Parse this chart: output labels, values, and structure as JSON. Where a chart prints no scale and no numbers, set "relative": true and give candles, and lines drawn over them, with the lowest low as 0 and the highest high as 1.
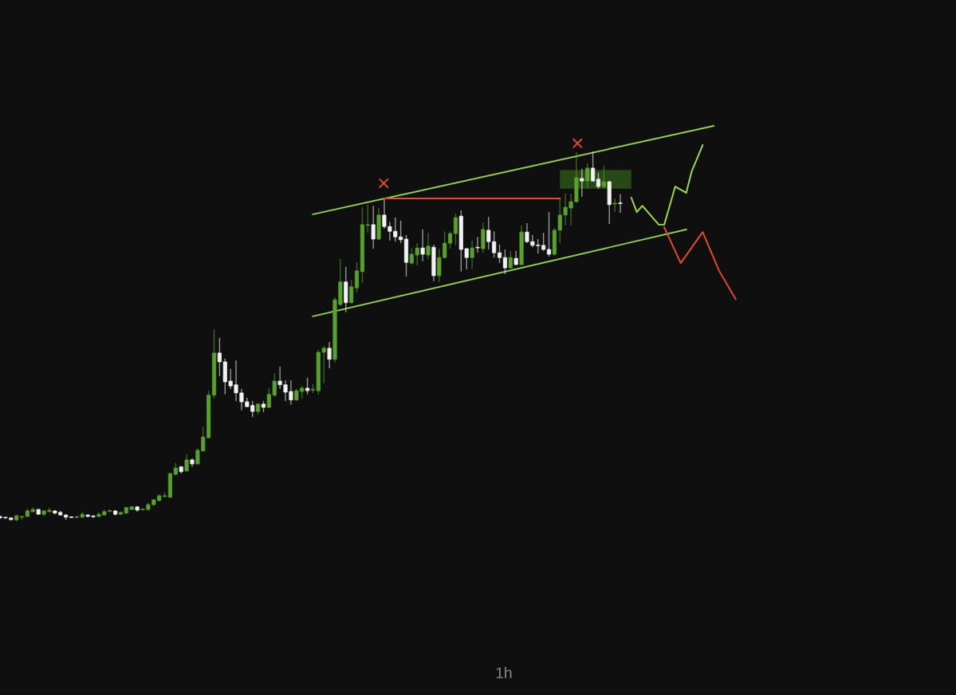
{
  "chart_data": {
    "type": "candlestick",
    "relative": true,
    "categories": [
      null,
      null,
      null,
      null,
      null,
      null,
      null,
      null,
      null,
      null,
      null,
      null,
      null,
      null,
      null,
      null,
      null,
      null,
      null,
      null,
      null,
      null,
      null,
      null,
      null,
      null,
      null,
      null,
      null,
      null,
      null,
      null,
      null,
      null,
      null,
      null,
      null,
      null,
      null,
      null,
      null,
      null,
      null,
      null,
      null,
      null,
      null,
      null,
      null,
      null,
      null,
      null,
      null,
      null,
      null,
      null,
      null,
      null,
      null,
      null,
      null,
      null,
      null,
      null,
      null,
      null,
      null,
      null,
      null,
      null,
      null,
      null,
      null,
      null,
      null,
      null,
      null,
      null,
      null,
      null,
      null,
      null,
      null,
      null,
      null,
      null,
      null,
      null,
      null,
      null,
      null,
      null,
      null,
      null,
      null,
      null,
      null,
      null,
      null,
      null,
      null,
      null,
      null,
      null,
      null,
      null,
      null,
      null,
      null,
      null,
      null,
      null,
      null,
      null,
      null,
      null,
      null,
      null,
      null,
      null,
      null,
      null,
      null,
      null,
      null,
      null,
      null,
      null,
      null,
      null,
      null,
      null,
      null,
      null,
      null
    ],
    "colors": [
      "#f2f2f2",
      "#f2f2f2",
      "#f2f2f2",
      "#58a22c",
      "#58a22c",
      "#58a22c",
      "#58a22c",
      "#f2f2f2",
      "#58a22c",
      "#58a22c",
      "#f2f2f2",
      "#f2f2f2",
      "#f2f2f2",
      "#f2f2f2",
      "#58a22c",
      "#58a22c",
      "#f2f2f2",
      "#f2f2f2",
      "#58a22c",
      "#58a22c",
      "#58a22c",
      "#f2f2f2",
      "#58a22c",
      "#58a22c",
      "#58a22c",
      "#f2f2f2",
      "#58a22c",
      "#58a22c",
      "#58a22c",
      "#58a22c",
      "#58a22c",
      "#58a22c",
      "#58a22c",
      "#f2f2f2",
      "#58a22c",
      "#f2f2f2",
      "#58a22c",
      "#58a22c",
      "#58a22c",
      "#58a22c",
      "#f2f2f2",
      "#f2f2f2",
      "#f2f2f2",
      "#f2f2f2",
      "#f2f2f2",
      "#f2f2f2",
      "#f2f2f2",
      "#58a22c",
      "#f2f2f2",
      "#58a22c",
      "#58a22c",
      "#f2f2f2",
      "#f2f2f2",
      "#f2f2f2",
      "#58a22c",
      "#58a22c",
      "#f2f2f2",
      "#58a22c",
      "#58a22c",
      "#58a22c",
      "#f2f2f2",
      "#58a22c",
      "#58a22c",
      "#f2f2f2",
      "#58a22c",
      "#58a22c",
      "#58a22c",
      "#58a22c",
      "#f2f2f2",
      "#58a22c",
      "#f2f2f2",
      "#f2f2f2",
      "#f2f2f2",
      "#f2f2f2",
      "#f2f2f2",
      "#58a22c",
      "#58a22c",
      "#f2f2f2",
      "#58a22c",
      "#f2f2f2",
      "#58a22c",
      "#58a22c",
      "#58a22c",
      "#58a22c",
      "#f2f2f2",
      "#f2f2f2",
      "#58a22c",
      "#f2f2f2",
      "#58a22c",
      "#f2f2f2",
      "#f2f2f2",
      "#f2f2f2",
      "#f2f2f2",
      "#58a22c",
      "#f2f2f2",
      "#58a22c",
      "#f2f2f2",
      "#f2f2f2",
      "#f2f2f2",
      "#f2f2f2",
      "#f2f2f2",
      "#58a22c",
      "#58a22c",
      "#58a22c",
      "#58a22c",
      "#58a22c",
      "#f2f2f2",
      "#58a22c",
      "#f2f2f2",
      "#f2f2f2",
      "#58a22c",
      "#f2f2f2",
      "#58a22c",
      "#f2f2f2",
      null,
      null,
      null,
      null,
      null,
      null,
      null,
      null,
      null,
      null,
      null,
      null,
      null,
      null,
      null,
      null,
      null,
      null,
      null,
      null,
      null
    ],
    "ohlc": [
      [
        0.013,
        0.015,
        0.006,
        0.009
      ],
      [
        0.01,
        0.011,
        0.006,
        0.009
      ],
      [
        0.009,
        0.011,
        0.004,
        0.004
      ],
      [
        0.004,
        0.017,
        0,
        0.015
      ],
      [
        0.011,
        0.015,
        0.004,
        0.013
      ],
      [
        0.013,
        0.034,
        0.011,
        0.028
      ],
      [
        0.026,
        0.037,
        0.024,
        0.032
      ],
      [
        0.032,
        0.034,
        0.017,
        0.019
      ],
      [
        0.019,
        0.03,
        0.013,
        0.028
      ],
      [
        0.026,
        0.037,
        0.024,
        0.03
      ],
      [
        0.028,
        0.03,
        0.019,
        0.022
      ],
      [
        0.024,
        0.028,
        0.015,
        0.017
      ],
      [
        0.017,
        0.019,
        0.004,
        0.011
      ],
      [
        0.011,
        0.013,
        0.009,
        0.01
      ],
      [
        0.01,
        0.015,
        0.009,
        0.011
      ],
      [
        0.011,
        0.026,
        0.009,
        0.019
      ],
      [
        0.017,
        0.019,
        0.011,
        0.013
      ],
      [
        0.013,
        0.017,
        0.009,
        0.012
      ],
      [
        0.013,
        0.024,
        0.011,
        0.019
      ],
      [
        0.017,
        0.032,
        0.015,
        0.026
      ],
      [
        0.027,
        0.032,
        0.024,
        0.028
      ],
      [
        0.028,
        0.03,
        0.015,
        0.019
      ],
      [
        0.019,
        0.026,
        0.017,
        0.024
      ],
      [
        0.022,
        0.039,
        0.019,
        0.037
      ],
      [
        0.032,
        0.041,
        0.03,
        0.039
      ],
      [
        0.039,
        0.041,
        0.026,
        0.03
      ],
      [
        0.031,
        0.034,
        0.03,
        0.032
      ],
      [
        0.032,
        0.05,
        0.028,
        0.045
      ],
      [
        0.045,
        0.06,
        0.041,
        0.058
      ],
      [
        0.056,
        0.073,
        0.054,
        0.069
      ],
      [
        0.067,
        0.078,
        0.065,
        0.068
      ],
      [
        0.065,
        0.131,
        0.063,
        0.129
      ],
      [
        0.127,
        0.157,
        0.123,
        0.144
      ],
      [
        0.147,
        0.149,
        0.129,
        0.134
      ],
      [
        0.136,
        0.181,
        0.134,
        0.166
      ],
      [
        0.166,
        0.17,
        0.147,
        0.155
      ],
      [
        0.155,
        0.196,
        0.153,
        0.192
      ],
      [
        0.19,
        0.256,
        0.188,
        0.228
      ],
      [
        0.226,
        0.353,
        0.224,
        0.341
      ],
      [
        0.341,
        0.519,
        0.332,
        0.455
      ],
      [
        0.455,
        0.496,
        0.392,
        0.431
      ],
      [
        0.431,
        0.44,
        0.343,
        0.377
      ],
      [
        0.379,
        0.412,
        0.358,
        0.366
      ],
      [
        0.369,
        0.435,
        0.325,
        0.347
      ],
      [
        0.347,
        0.358,
        0.3,
        0.323
      ],
      [
        0.323,
        0.334,
        0.308,
        0.31
      ],
      [
        0.313,
        0.325,
        0.282,
        0.297
      ],
      [
        0.297,
        0.319,
        0.289,
        0.317
      ],
      [
        0.317,
        0.325,
        0.295,
        0.308
      ],
      [
        0.308,
        0.36,
        0.306,
        0.343
      ],
      [
        0.341,
        0.399,
        0.336,
        0.379
      ],
      [
        0.379,
        0.418,
        0.358,
        0.369
      ],
      [
        0.369,
        0.381,
        0.325,
        0.349
      ],
      [
        0.351,
        0.381,
        0.315,
        0.328
      ],
      [
        0.328,
        0.358,
        0.325,
        0.353
      ],
      [
        0.351,
        0.366,
        0.332,
        0.36
      ],
      [
        0.36,
        0.388,
        0.343,
        0.353
      ],
      [
        0.355,
        0.371,
        0.347,
        0.356
      ],
      [
        0.353,
        0.463,
        0.343,
        0.457
      ],
      [
        0.457,
        0.474,
        0.373,
        0.468
      ],
      [
        0.468,
        0.485,
        0.414,
        0.438
      ],
      [
        0.438,
        0.606,
        0.429,
        0.599
      ],
      [
        0.586,
        0.709,
        0.582,
        0.647
      ],
      [
        0.647,
        0.688,
        0.565,
        0.591
      ],
      [
        0.591,
        0.653,
        0.588,
        0.634
      ],
      [
        0.631,
        0.7,
        0.619,
        0.677
      ],
      [
        0.675,
        0.849,
        0.644,
        0.802
      ],
      [
        0.8,
        0.856,
        0.78,
        0.802
      ],
      [
        0.802,
        0.853,
        0.737,
        0.763
      ],
      [
        0.763,
        0.847,
        0.761,
        0.828
      ],
      [
        0.828,
        0.871,
        0.791,
        0.797
      ],
      [
        0.797,
        0.81,
        0.759,
        0.784
      ],
      [
        0.784,
        0.821,
        0.756,
        0.769
      ],
      [
        0.769,
        0.813,
        0.752,
        0.761
      ],
      [
        0.763,
        0.774,
        0.662,
        0.7
      ],
      [
        0.698,
        0.739,
        0.694,
        0.722
      ],
      [
        0.72,
        0.752,
        0.692,
        0.739
      ],
      [
        0.739,
        0.789,
        0.703,
        0.722
      ],
      [
        0.72,
        0.78,
        0.709,
        0.744
      ],
      [
        0.741,
        0.748,
        0.649,
        0.664
      ],
      [
        0.664,
        0.737,
        0.647,
        0.713
      ],
      [
        0.713,
        0.784,
        0.711,
        0.752
      ],
      [
        0.752,
        0.784,
        0.737,
        0.778
      ],
      [
        0.778,
        0.832,
        0.746,
        0.821
      ],
      [
        0.825,
        0.841,
        0.675,
        0.735
      ],
      [
        0.737,
        0.739,
        0.681,
        0.713
      ],
      [
        0.713,
        0.759,
        0.683,
        0.739
      ],
      [
        0.74,
        0.769,
        0.726,
        0.739
      ],
      [
        0.737,
        0.808,
        0.726,
        0.789
      ],
      [
        0.787,
        0.823,
        0.735,
        0.756
      ],
      [
        0.756,
        0.784,
        0.713,
        0.726
      ],
      [
        0.726,
        0.748,
        0.698,
        0.713
      ],
      [
        0.713,
        0.735,
        0.668,
        0.685
      ],
      [
        0.685,
        0.731,
        0.683,
        0.713
      ],
      [
        0.711,
        0.731,
        0.692,
        0.694
      ],
      [
        0.694,
        0.8,
        0.692,
        0.782
      ],
      [
        0.782,
        0.806,
        0.752,
        0.756
      ],
      [
        0.756,
        0.774,
        0.741,
        0.746
      ],
      [
        0.746,
        0.763,
        0.724,
        0.745
      ],
      [
        0.746,
        0.78,
        0.731,
        0.735
      ],
      [
        0.735,
        0.836,
        0.716,
        0.722
      ],
      [
        0.722,
        0.793,
        0.718,
        0.787
      ],
      [
        0.787,
        0.871,
        0.752,
        0.828
      ],
      [
        0.828,
        0.886,
        0.8,
        0.849
      ],
      [
        0.847,
        0.886,
        0.8,
        0.864
      ],
      [
        0.864,
        0.998,
        0.862,
        0.929
      ],
      [
        0.927,
        0.953,
        0.877,
        0.92
      ],
      [
        0.92,
        0.968,
        0.899,
        0.955
      ],
      [
        0.955,
        1,
        0.918,
        0.92
      ],
      [
        0.925,
        0.942,
        0.899,
        0.905
      ],
      [
        0.905,
        0.961,
        0.899,
        0.918
      ],
      [
        0.918,
        0.92,
        0.804,
        0.856
      ],
      [
        0.858,
        0.873,
        0.836,
        0.86
      ],
      [
        0.86,
        0.884,
        0.834,
        0.859
      ],
      null,
      null,
      null,
      null,
      null,
      null,
      null,
      null,
      null,
      null,
      null,
      null,
      null,
      null,
      null,
      null,
      null,
      null,
      null,
      null,
      null
    ],
    "series": [
      {
        "type": "line",
        "color": "#8fd14f",
        "values": [
          null,
          null,
          null,
          null,
          null,
          null,
          null,
          null,
          null,
          null,
          null,
          null,
          null,
          null,
          null,
          null,
          null,
          null,
          null,
          null,
          null,
          null,
          null,
          null,
          null,
          null,
          null,
          null,
          null,
          null,
          null,
          null,
          null,
          null,
          null,
          null,
          null,
          null,
          null,
          null,
          null,
          null,
          null,
          null,
          null,
          null,
          null,
          null,
          null,
          null,
          null,
          null,
          null,
          null,
          null,
          null,
          null,
          0.83,
          null,
          null,
          null,
          null,
          null,
          null,
          null,
          null,
          null,
          null,
          null,
          null,
          null,
          null,
          null,
          null,
          null,
          null,
          null,
          null,
          null,
          null,
          null,
          null,
          null,
          null,
          null,
          null,
          null,
          null,
          null,
          null,
          null,
          null,
          null,
          null,
          null,
          null,
          null,
          null,
          null,
          null,
          null,
          null,
          null,
          null,
          null,
          null,
          null,
          null,
          null,
          null,
          null,
          null,
          null,
          null,
          null,
          null,
          null,
          null,
          null,
          null,
          null,
          null,
          null,
          null,
          null,
          null,
          null,
          null,
          null,
          null,
          1.069,
          null,
          null,
          null,
          null
        ]
      },
      {
        "type": "line",
        "color": "#8fd14f",
        "values": [
          null,
          null,
          null,
          null,
          null,
          null,
          null,
          null,
          null,
          null,
          null,
          null,
          null,
          null,
          null,
          null,
          null,
          null,
          null,
          null,
          null,
          null,
          null,
          null,
          null,
          null,
          null,
          null,
          null,
          null,
          null,
          null,
          null,
          null,
          null,
          null,
          null,
          null,
          null,
          null,
          null,
          null,
          null,
          null,
          null,
          null,
          null,
          null,
          null,
          null,
          null,
          null,
          null,
          null,
          null,
          null,
          null,
          0.554,
          null,
          null,
          null,
          null,
          null,
          null,
          null,
          null,
          null,
          null,
          null,
          null,
          null,
          null,
          null,
          null,
          null,
          null,
          null,
          null,
          null,
          null,
          null,
          null,
          null,
          null,
          null,
          null,
          null,
          null,
          null,
          null,
          null,
          null,
          null,
          null,
          null,
          null,
          null,
          null,
          null,
          null,
          null,
          null,
          null,
          null,
          null,
          null,
          null,
          null,
          null,
          null,
          null,
          null,
          null,
          null,
          null,
          null,
          null,
          null,
          null,
          null,
          null,
          null,
          null,
          null,
          null,
          0.789,
          null,
          null,
          null,
          null,
          null,
          null,
          null,
          null,
          null
        ]
      },
      {
        "type": "line",
        "color": "#e8492f",
        "values": [
          null,
          null,
          null,
          null,
          null,
          null,
          null,
          null,
          null,
          null,
          null,
          null,
          null,
          null,
          null,
          null,
          null,
          null,
          null,
          null,
          null,
          null,
          null,
          null,
          null,
          null,
          null,
          null,
          null,
          null,
          null,
          null,
          null,
          null,
          null,
          null,
          null,
          null,
          null,
          null,
          null,
          null,
          null,
          null,
          null,
          null,
          null,
          null,
          null,
          null,
          null,
          null,
          null,
          null,
          null,
          null,
          null,
          null,
          null,
          null,
          null,
          null,
          null,
          null,
          null,
          null,
          null,
          null,
          null,
          null,
          0.873,
          null,
          null,
          null,
          null,
          null,
          null,
          null,
          null,
          null,
          null,
          null,
          null,
          null,
          null,
          null,
          null,
          null,
          null,
          null,
          null,
          null,
          null,
          null,
          null,
          null,
          null,
          null,
          null,
          null,
          null,
          null,
          0.873,
          null,
          null,
          null,
          null,
          null,
          null,
          null,
          null,
          null,
          null,
          null,
          null,
          null,
          null,
          null,
          null,
          null,
          null,
          null,
          null,
          null,
          null,
          null,
          null,
          null,
          null,
          null,
          null,
          null,
          null,
          null,
          null
        ]
      },
      {
        "type": "line",
        "color": "#9be03a",
        "values": [
          null,
          null,
          null,
          null,
          null,
          null,
          null,
          null,
          null,
          null,
          null,
          null,
          null,
          null,
          null,
          null,
          null,
          null,
          null,
          null,
          null,
          null,
          null,
          null,
          null,
          null,
          null,
          null,
          null,
          null,
          null,
          null,
          null,
          null,
          null,
          null,
          null,
          null,
          null,
          null,
          null,
          null,
          null,
          null,
          null,
          null,
          null,
          null,
          null,
          null,
          null,
          null,
          null,
          null,
          null,
          null,
          null,
          null,
          null,
          null,
          null,
          null,
          null,
          null,
          null,
          null,
          null,
          null,
          null,
          null,
          null,
          null,
          null,
          null,
          null,
          null,
          null,
          null,
          null,
          null,
          null,
          null,
          null,
          null,
          null,
          null,
          null,
          null,
          null,
          null,
          null,
          null,
          null,
          null,
          null,
          null,
          null,
          null,
          null,
          null,
          null,
          null,
          null,
          null,
          null,
          null,
          null,
          null,
          null,
          null,
          null,
          null,
          null,
          null,
          null,
          0.875,
          0.836,
          0.853,
          null,
          null,
          0.802,
          0.802,
          null,
          0.905,
          null,
          0.888,
          0.946,
          null,
          1.017,
          null,
          null,
          null,
          null,
          null,
          null
        ]
      },
      {
        "type": "line",
        "color": "#e8492f",
        "values": [
          null,
          null,
          null,
          null,
          null,
          null,
          null,
          null,
          null,
          null,
          null,
          null,
          null,
          null,
          null,
          null,
          null,
          null,
          null,
          null,
          null,
          null,
          null,
          null,
          null,
          null,
          null,
          null,
          null,
          null,
          null,
          null,
          null,
          null,
          null,
          null,
          null,
          null,
          null,
          null,
          null,
          null,
          null,
          null,
          null,
          null,
          null,
          null,
          null,
          null,
          null,
          null,
          null,
          null,
          null,
          null,
          null,
          null,
          null,
          null,
          null,
          null,
          null,
          null,
          null,
          null,
          null,
          null,
          null,
          null,
          null,
          null,
          null,
          null,
          null,
          null,
          null,
          null,
          null,
          null,
          null,
          null,
          null,
          null,
          null,
          null,
          null,
          null,
          null,
          null,
          null,
          null,
          null,
          null,
          null,
          null,
          null,
          null,
          null,
          null,
          null,
          null,
          null,
          null,
          null,
          null,
          null,
          null,
          null,
          null,
          null,
          null,
          null,
          null,
          null,
          null,
          null,
          null,
          null,
          null,
          null,
          0.795,
          null,
          null,
          0.698,
          null,
          null,
          null,
          0.782,
          null,
          null,
          0.677,
          null,
          null,
          0.601
        ]
      }
    ],
    "annotations": [
      "1h"
    ]
  }
}
